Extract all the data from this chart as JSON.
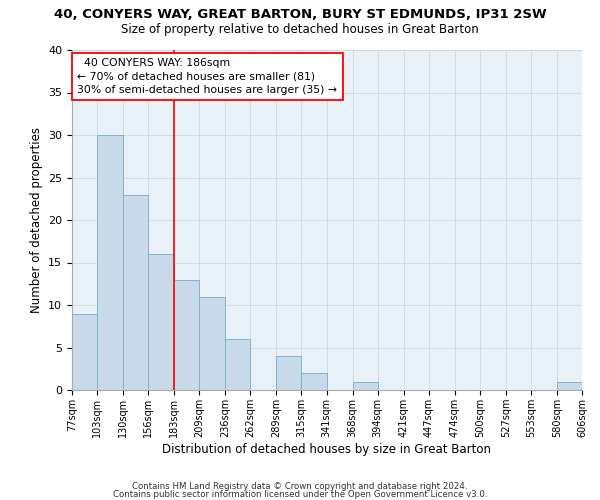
{
  "title": "40, CONYERS WAY, GREAT BARTON, BURY ST EDMUNDS, IP31 2SW",
  "subtitle": "Size of property relative to detached houses in Great Barton",
  "xlabel": "Distribution of detached houses by size in Great Barton",
  "ylabel": "Number of detached properties",
  "bar_edges": [
    77,
    103,
    130,
    156,
    183,
    209,
    236,
    262,
    289,
    315,
    341,
    368,
    394,
    421,
    447,
    474,
    500,
    527,
    553,
    580,
    606
  ],
  "bar_values": [
    9,
    30,
    23,
    16,
    13,
    11,
    6,
    0,
    4,
    2,
    0,
    1,
    0,
    0,
    0,
    0,
    0,
    0,
    0,
    1
  ],
  "bar_color": "#c8d9ea",
  "bar_edgecolor": "#7aaac8",
  "grid_color": "#d0d8e0",
  "vline_x": 183,
  "vline_color": "red",
  "annotation_text": "  40 CONYERS WAY: 186sqm  \n← 70% of detached houses are smaller (81)\n30% of semi-detached houses are larger (35) →",
  "annotation_box_color": "white",
  "annotation_box_edgecolor": "red",
  "ylim": [
    0,
    40
  ],
  "yticks": [
    0,
    5,
    10,
    15,
    20,
    25,
    30,
    35,
    40
  ],
  "tick_labels": [
    "77sqm",
    "103sqm",
    "130sqm",
    "156sqm",
    "183sqm",
    "209sqm",
    "236sqm",
    "262sqm",
    "289sqm",
    "315sqm",
    "341sqm",
    "368sqm",
    "394sqm",
    "421sqm",
    "447sqm",
    "474sqm",
    "500sqm",
    "527sqm",
    "553sqm",
    "580sqm",
    "606sqm"
  ],
  "footnote1": "Contains HM Land Registry data © Crown copyright and database right 2024.",
  "footnote2": "Contains public sector information licensed under the Open Government Licence v3.0.",
  "plot_bg": "#e8f0f8",
  "fig_bg": "#ffffff"
}
